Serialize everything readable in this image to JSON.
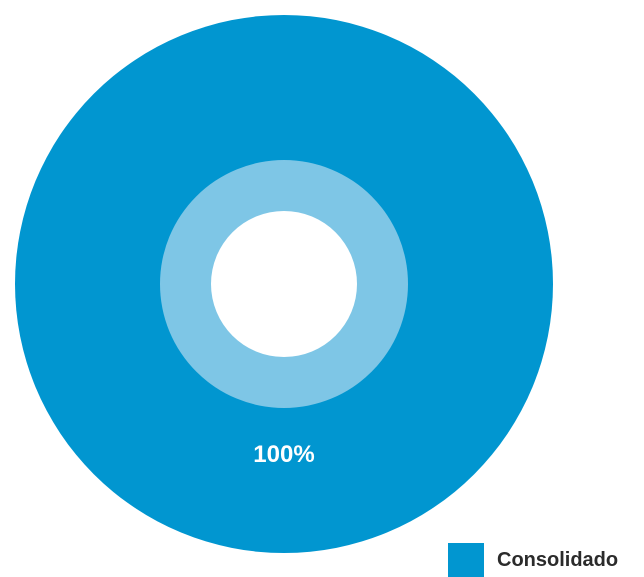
{
  "chart_data": {
    "type": "pie",
    "title": "",
    "slices": [
      {
        "label": "Consolidado",
        "value": 100,
        "value_label": "100%",
        "color": "#0196d0"
      }
    ],
    "inner_ring_color": "#7ec6e6",
    "legend_placement": "bottom-right",
    "legend": [
      {
        "label": "Consolidado",
        "color": "#0196d0"
      }
    ]
  }
}
